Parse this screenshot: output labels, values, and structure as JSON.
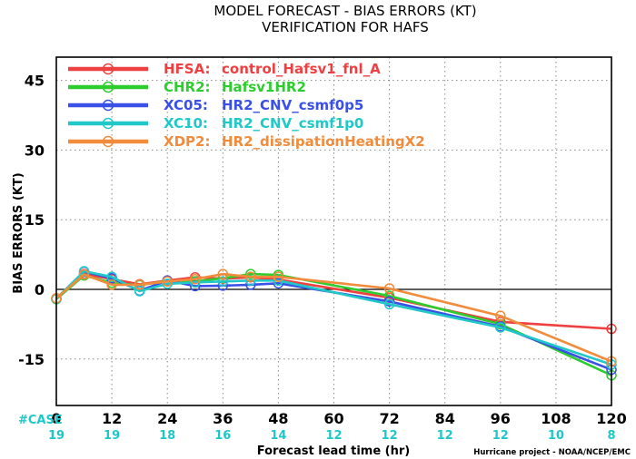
{
  "chart_data": {
    "type": "line",
    "title": "MODEL FORECAST - BIAS ERRORS (KT)",
    "subtitle": "VERIFICATION FOR HAFS",
    "xlabel": "Forecast lead time (hr)",
    "ylabel": "BIAS ERRORS (KT)",
    "xlim": [
      0,
      120
    ],
    "ylim": [
      -25,
      50
    ],
    "xticks": [
      "0",
      "12",
      "24",
      "36",
      "48",
      "60",
      "72",
      "84",
      "96",
      "108",
      "120"
    ],
    "yticks": [
      "45",
      "30",
      "15",
      "0",
      "-15"
    ],
    "grid": true,
    "legend_position": "top-left",
    "case_label": "#CASE",
    "case_counts": [
      {
        "x": 0,
        "label": "19"
      },
      {
        "x": 12,
        "label": "19"
      },
      {
        "x": 24,
        "label": "18"
      },
      {
        "x": 36,
        "label": "16"
      },
      {
        "x": 48,
        "label": "14"
      },
      {
        "x": 60,
        "label": "12"
      },
      {
        "x": 72,
        "label": "12"
      },
      {
        "x": 84,
        "label": "12"
      },
      {
        "x": 96,
        "label": "12"
      },
      {
        "x": 108,
        "label": "10"
      },
      {
        "x": 120,
        "label": "8"
      }
    ],
    "series": [
      {
        "code": "HFSA:",
        "desc": "control_Hafsv1_fnl_A",
        "color": "#ee4040",
        "x": [
          0,
          6,
          12,
          18,
          24,
          30,
          36,
          42,
          48,
          72,
          96,
          120
        ],
        "values": [
          -2.0,
          3.3,
          2.2,
          1.1,
          1.9,
          2.6,
          2.3,
          2.6,
          2.1,
          -1.8,
          -7.0,
          -8.5
        ]
      },
      {
        "code": "CHR2:",
        "desc": "Hafsv1HR2",
        "color": "#2ecc2e",
        "x": [
          0,
          6,
          12,
          18,
          24,
          30,
          36,
          42,
          48,
          72,
          96,
          120
        ],
        "values": [
          -2.1,
          3.0,
          1.4,
          0.9,
          1.8,
          1.7,
          2.4,
          3.3,
          3.1,
          -1.4,
          -7.5,
          -18.5
        ]
      },
      {
        "code": "XC05:",
        "desc": "HR2_CNV_csmf0p5",
        "color": "#3a50e6",
        "x": [
          0,
          6,
          12,
          18,
          24,
          30,
          36,
          42,
          48,
          72,
          96,
          120
        ],
        "values": [
          -2.0,
          3.8,
          2.4,
          -0.3,
          1.9,
          0.7,
          0.8,
          1.0,
          1.3,
          -2.6,
          -8.0,
          -17.3
        ]
      },
      {
        "code": "XC10:",
        "desc": "HR2_CNV_csmf1p0",
        "color": "#22c8c8",
        "x": [
          0,
          6,
          12,
          18,
          24,
          30,
          36,
          42,
          48,
          72,
          96,
          120
        ],
        "values": [
          -2.0,
          3.9,
          2.7,
          -0.4,
          1.2,
          1.5,
          1.7,
          1.9,
          1.9,
          -3.2,
          -8.2,
          -16.2
        ]
      },
      {
        "code": "XDP2:",
        "desc": "HR2_dissipationHeatingX2",
        "color": "#f08c3c",
        "x": [
          0,
          6,
          12,
          18,
          24,
          30,
          36,
          42,
          48,
          72,
          96,
          120
        ],
        "values": [
          -1.9,
          3.2,
          1.0,
          1.0,
          1.7,
          2.2,
          3.3,
          2.7,
          2.7,
          0.2,
          -5.7,
          -15.5
        ]
      }
    ],
    "credit": "Hurricane project - NOAA/NCEP/EMC"
  }
}
